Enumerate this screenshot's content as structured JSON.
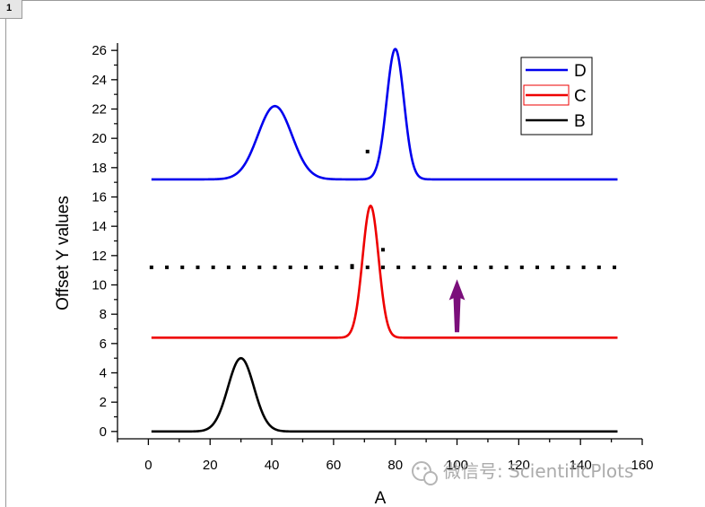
{
  "window": {
    "tab_label": "1"
  },
  "colors": {
    "D": "#0000ee",
    "C": "#ee0000",
    "B": "#000000",
    "arrow": "#7b0f7b",
    "dots": "#000000"
  },
  "chart_data": {
    "type": "line",
    "title": "",
    "xlabel": "A",
    "ylabel": "Offset Y values",
    "xlim": [
      -10,
      160
    ],
    "ylim": [
      -0.5,
      26.5
    ],
    "xticks": [
      0,
      20,
      40,
      60,
      80,
      100,
      120,
      140,
      160
    ],
    "yticks": [
      0,
      2,
      4,
      6,
      8,
      10,
      12,
      14,
      16,
      18,
      20,
      22,
      24,
      26
    ],
    "grid": false,
    "legend_position": "top-right",
    "series": [
      {
        "name": "D",
        "color": "#0000ee",
        "offset": 17.2,
        "peaks": [
          {
            "center": 41,
            "height": 5.0,
            "sigma": 5.5
          },
          {
            "center": 80,
            "height": 8.9,
            "sigma": 2.8
          }
        ],
        "x_start": 1,
        "x_end": 152
      },
      {
        "name": "C",
        "color": "#ee0000",
        "offset": 6.4,
        "peaks": [
          {
            "center": 72,
            "height": 9.0,
            "sigma": 2.6
          }
        ],
        "x_start": 1,
        "x_end": 152
      },
      {
        "name": "B",
        "color": "#000000",
        "offset": 0,
        "peaks": [
          {
            "center": 30,
            "height": 5.0,
            "sigma": 4.2
          }
        ],
        "x_start": 1,
        "x_end": 152
      }
    ],
    "dotted_line": {
      "y": 11.2,
      "x_start": 1,
      "x_end": 152,
      "spacing": 5
    },
    "stray_marks": [
      {
        "x": 71,
        "y": 19.1
      },
      {
        "x": 76,
        "y": 12.4
      },
      {
        "x": 66,
        "y": 11.3
      }
    ],
    "annotations": [
      {
        "type": "arrow",
        "x": 100,
        "y_from": 6.8,
        "y_to": 10.3,
        "color": "#7b0f7b"
      }
    ]
  },
  "watermark": {
    "text": "微信号: ScientificPlots"
  }
}
